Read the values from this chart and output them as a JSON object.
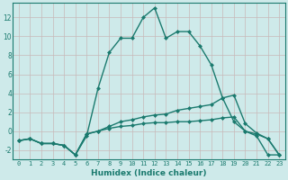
{
  "xlabel": "Humidex (Indice chaleur)",
  "bg_color": "#ceeaea",
  "grid_color": "#aacccc",
  "line_color": "#1a7a6e",
  "xlim": [
    -0.5,
    23.5
  ],
  "ylim": [
    -3.0,
    13.5
  ],
  "xticks": [
    0,
    1,
    2,
    3,
    4,
    5,
    6,
    7,
    8,
    9,
    10,
    11,
    12,
    13,
    14,
    15,
    16,
    17,
    18,
    19,
    20,
    21,
    22,
    23
  ],
  "yticks": [
    -2,
    0,
    2,
    4,
    6,
    8,
    10,
    12
  ],
  "line1_x": [
    0,
    1,
    2,
    3,
    4,
    5,
    6,
    7,
    8,
    9,
    10,
    11,
    12,
    13,
    14,
    15,
    16,
    17,
    18,
    19,
    20,
    21,
    22,
    23
  ],
  "line1_y": [
    -1.0,
    -0.8,
    -1.3,
    -1.3,
    -1.5,
    -2.5,
    -0.5,
    4.5,
    8.3,
    9.8,
    9.8,
    12.0,
    13.0,
    9.8,
    10.5,
    10.5,
    9.0,
    7.0,
    3.5,
    1.0,
    0.0,
    -0.5,
    -2.5,
    -2.5
  ],
  "line2_x": [
    0,
    1,
    2,
    3,
    4,
    5,
    6,
    7,
    8,
    9,
    10,
    11,
    12,
    13,
    14,
    15,
    16,
    17,
    18,
    19,
    20,
    21,
    22,
    23
  ],
  "line2_y": [
    -1.0,
    -0.8,
    -1.3,
    -1.3,
    -1.5,
    -2.5,
    -0.3,
    0.0,
    0.5,
    1.0,
    1.2,
    1.5,
    1.7,
    1.8,
    2.2,
    2.4,
    2.6,
    2.8,
    3.5,
    3.8,
    0.8,
    -0.2,
    -0.8,
    -2.5
  ],
  "line3_x": [
    0,
    1,
    2,
    3,
    4,
    5,
    6,
    7,
    8,
    9,
    10,
    11,
    12,
    13,
    14,
    15,
    16,
    17,
    18,
    19,
    20,
    21,
    22,
    23
  ],
  "line3_y": [
    -1.0,
    -0.8,
    -1.3,
    -1.3,
    -1.5,
    -2.5,
    -0.3,
    0.0,
    0.3,
    0.5,
    0.6,
    0.8,
    0.9,
    0.9,
    1.0,
    1.0,
    1.1,
    1.2,
    1.4,
    1.5,
    0.0,
    -0.3,
    -0.8,
    -2.5
  ]
}
